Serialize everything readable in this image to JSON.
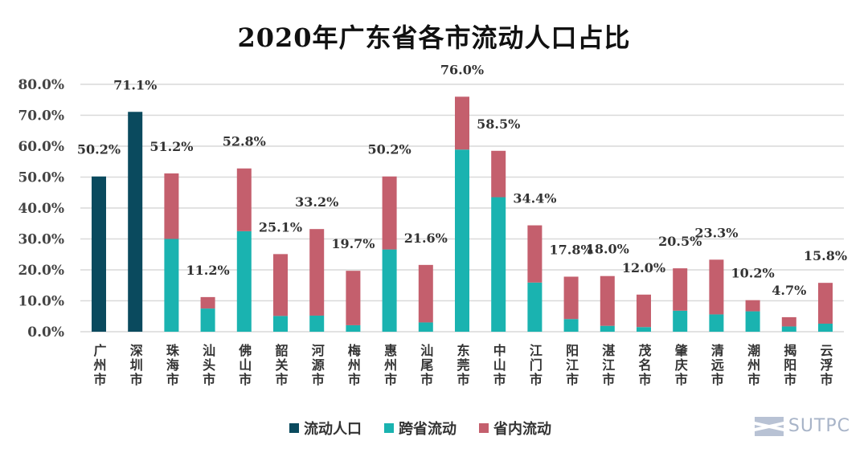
{
  "chart_data": {
    "type": "bar",
    "stacked": true,
    "title": "2020年广东省各市流动人口占比",
    "categories": [
      "广州市",
      "深圳市",
      "珠海市",
      "汕头市",
      "佛山市",
      "韶关市",
      "河源市",
      "梅州市",
      "惠州市",
      "汕尾市",
      "东莞市",
      "中山市",
      "江门市",
      "阳江市",
      "湛江市",
      "茂名市",
      "肇庆市",
      "清远市",
      "潮州市",
      "揭阳市",
      "云浮市"
    ],
    "series": [
      {
        "name": "流动人口",
        "color": "#0a4a5e",
        "values": [
          50.2,
          71.1,
          null,
          null,
          null,
          null,
          null,
          null,
          null,
          null,
          null,
          null,
          null,
          null,
          null,
          null,
          null,
          null,
          null,
          null,
          null
        ]
      },
      {
        "name": "跨省流动",
        "color": "#1ab3b0",
        "values": [
          null,
          null,
          30.0,
          7.5,
          32.5,
          5.1,
          5.2,
          2.1,
          26.6,
          3.0,
          58.9,
          43.5,
          15.9,
          4.1,
          1.9,
          1.5,
          6.8,
          5.6,
          6.6,
          1.7,
          2.6
        ]
      },
      {
        "name": "省内流动",
        "color": "#c45f6d",
        "values": [
          null,
          null,
          21.2,
          3.7,
          20.3,
          20.0,
          28.0,
          17.6,
          23.6,
          18.6,
          17.1,
          15.0,
          18.5,
          13.7,
          16.1,
          10.5,
          13.7,
          17.7,
          3.6,
          3.0,
          13.2
        ]
      }
    ],
    "data_labels": [
      "50.2%",
      "71.1%",
      "51.2%",
      "11.2%",
      "52.8%",
      "25.1%",
      "33.2%",
      "19.7%",
      "50.2%",
      "21.6%",
      "76.0%",
      "58.5%",
      "34.4%",
      "17.8%",
      "18.0%",
      "12.0%",
      "20.5%",
      "23.3%",
      "10.2%",
      "4.7%",
      "15.8%"
    ],
    "totals": [
      50.2,
      71.1,
      51.2,
      11.2,
      52.8,
      25.1,
      33.2,
      19.7,
      50.2,
      21.6,
      76.0,
      58.5,
      34.4,
      17.8,
      18.0,
      12.0,
      20.5,
      23.3,
      10.2,
      4.7,
      15.8
    ],
    "y_ticks": [
      "0.0%",
      "10.0%",
      "20.0%",
      "30.0%",
      "40.0%",
      "50.0%",
      "60.0%",
      "70.0%",
      "80.0%"
    ],
    "ylim": [
      0,
      80
    ],
    "grid": true,
    "legend": "bottom"
  },
  "logo": {
    "text": "SUTPC"
  }
}
